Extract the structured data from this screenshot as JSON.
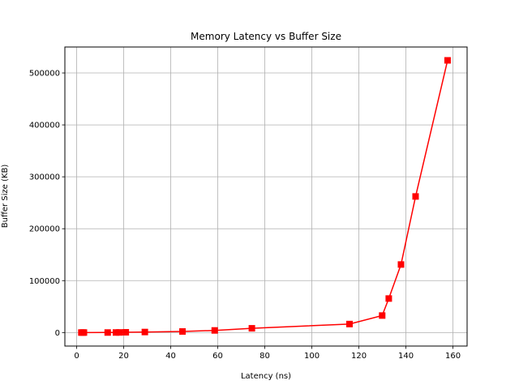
{
  "chart_data": {
    "type": "line",
    "title": "Memory Latency vs Buffer Size",
    "xlabel": "Latency (ns)",
    "ylabel": "Buffer Size (KB)",
    "xlim": [
      -5,
      166
    ],
    "ylim": [
      -26000,
      550000
    ],
    "x_ticks": [
      0,
      20,
      40,
      60,
      80,
      100,
      120,
      140,
      160
    ],
    "y_ticks": [
      0,
      100000,
      200000,
      300000,
      400000,
      500000
    ],
    "grid": true,
    "line_color": "#ff0000",
    "marker": "square",
    "series": [
      {
        "x": [
          2.0,
          2.6,
          3.1,
          13.2,
          16.7,
          18.2,
          20.9,
          29.0,
          45.0,
          58.7,
          74.5,
          116.0,
          129.9,
          132.7,
          137.9,
          144.1,
          157.7
        ],
        "y": [
          8,
          16,
          32,
          64,
          128,
          256,
          512,
          1024,
          2048,
          4096,
          8192,
          16384,
          32768,
          65536,
          131072,
          262144,
          524288
        ]
      }
    ]
  }
}
